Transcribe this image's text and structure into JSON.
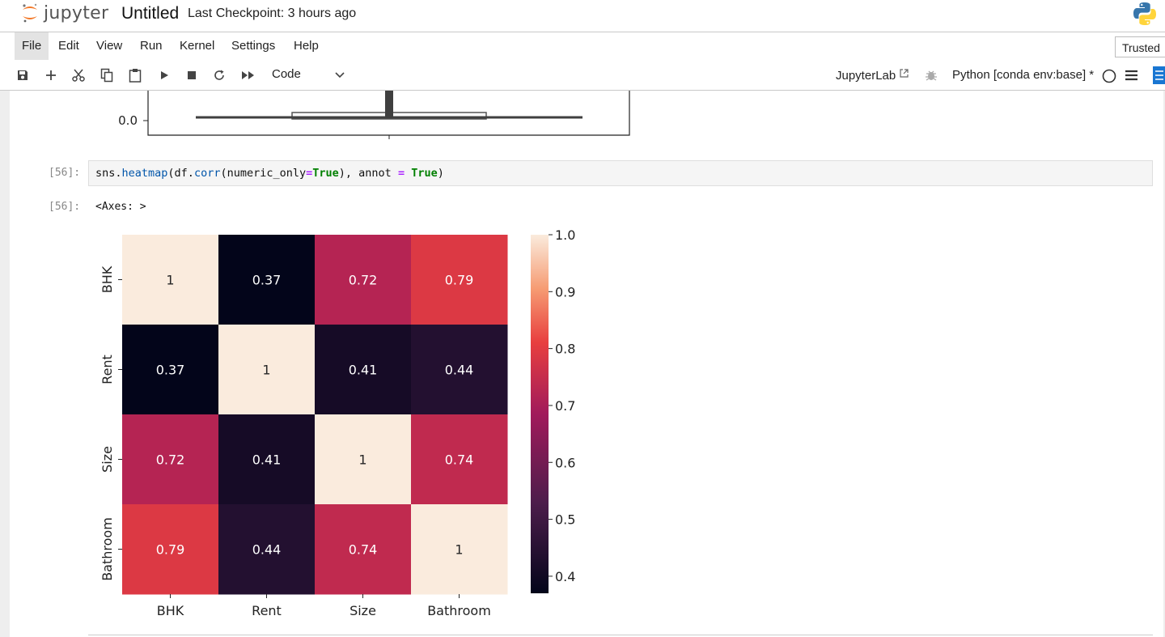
{
  "header": {
    "logo_text": "jupyter",
    "notebook_title": "Untitled",
    "checkpoint": "Last Checkpoint: 3 hours ago"
  },
  "menu": {
    "items": [
      "File",
      "Edit",
      "View",
      "Run",
      "Kernel",
      "Settings",
      "Help"
    ],
    "active": "File",
    "trusted": "Trusted"
  },
  "toolbar": {
    "cell_type": "Code",
    "jupyterlab": "JupyterLab",
    "kernel": "Python [conda env:base] *"
  },
  "prev_plot": {
    "tick_label": "0.0"
  },
  "cell56": {
    "in_prompt": "[56]:",
    "code": {
      "p1": "sns.",
      "p2": "heatmap",
      "p3": "(df.",
      "p4": "corr",
      "p5": "(numeric_only",
      "p6": "=",
      "p7": "True",
      "p8": "), annot ",
      "p9": "=",
      "p10": " ",
      "p11": "True",
      "p12": ")"
    },
    "out_prompt": "[56]:",
    "out_text": "<Axes: >"
  },
  "chart_data": {
    "type": "heatmap",
    "x_categories": [
      "BHK",
      "Rent",
      "Size",
      "Bathroom"
    ],
    "y_categories": [
      "BHK",
      "Rent",
      "Size",
      "Bathroom"
    ],
    "values": [
      [
        1,
        0.37,
        0.72,
        0.79
      ],
      [
        0.37,
        1,
        0.41,
        0.44
      ],
      [
        0.72,
        0.41,
        1,
        0.74
      ],
      [
        0.79,
        0.44,
        0.74,
        1
      ]
    ],
    "annotations": [
      [
        "1",
        "0.37",
        "0.72",
        "0.79"
      ],
      [
        "0.37",
        "1",
        "0.41",
        "0.44"
      ],
      [
        "0.72",
        "0.41",
        "1",
        "0.74"
      ],
      [
        "0.79",
        "0.44",
        "0.74",
        "1"
      ]
    ],
    "colorbar": {
      "min": 0.37,
      "max": 1.0,
      "ticks": [
        1.0,
        0.9,
        0.8,
        0.7,
        0.6,
        0.5,
        0.4
      ],
      "tick_labels": [
        "1.0",
        "0.9",
        "0.8",
        "0.7",
        "0.6",
        "0.5",
        "0.4"
      ]
    },
    "colormap": "rocket",
    "title": "",
    "xlabel": "",
    "ylabel": ""
  }
}
